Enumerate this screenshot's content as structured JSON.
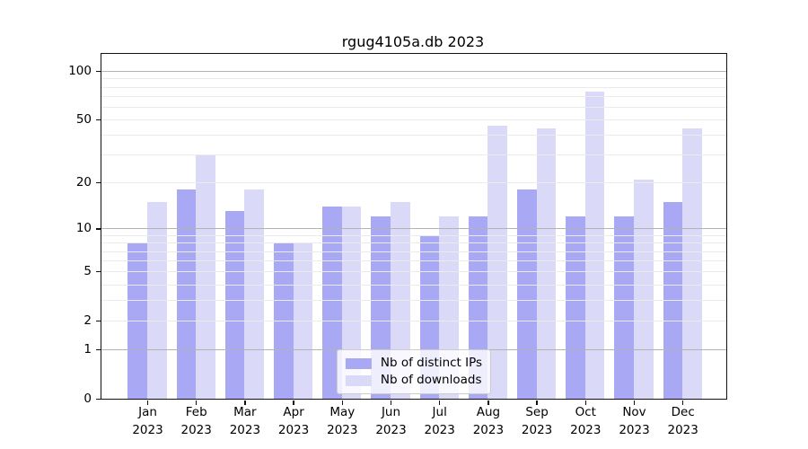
{
  "figure": {
    "background": "#ffffff"
  },
  "chart_data": {
    "type": "bar",
    "title": "rgug4105a.db 2023",
    "categories": [
      "Jan",
      "Feb",
      "Mar",
      "Apr",
      "May",
      "Jun",
      "Jul",
      "Aug",
      "Sep",
      "Oct",
      "Nov",
      "Dec"
    ],
    "x_tick_year": "2023",
    "series": [
      {
        "name": "Nb of distinct IPs",
        "color": "#a8a8f4",
        "values": [
          8,
          18,
          13,
          8,
          14,
          12,
          9,
          12,
          18,
          12,
          12,
          15
        ]
      },
      {
        "name": "Nb of downloads",
        "color": "#dadaf8",
        "values": [
          15,
          30,
          18,
          8,
          14,
          15,
          12,
          46,
          44,
          75,
          21,
          44
        ]
      }
    ],
    "y_scale": "log1p",
    "y_axis": {
      "ticks": [
        100,
        50,
        20,
        10,
        5,
        2,
        1,
        0
      ],
      "max": 127.5,
      "major_gridlines": [
        1,
        10,
        100
      ],
      "minor_gridlines": [
        2,
        3,
        4,
        6,
        7,
        8,
        9,
        20,
        30,
        40,
        60,
        70,
        80,
        90
      ],
      "labeled_minor_gridlines": [
        5,
        50
      ]
    },
    "legend": {
      "position": "lower center"
    },
    "grid": true,
    "colors": {
      "minor_grid": "#ebebeb",
      "major_grid": "#b3b3b3",
      "spine": "#111111",
      "text": "#000000"
    }
  }
}
